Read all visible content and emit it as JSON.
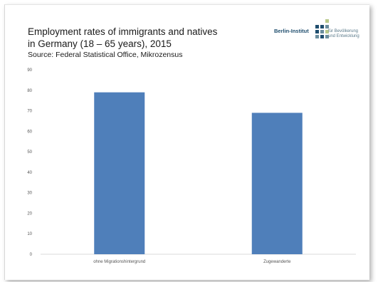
{
  "header": {
    "title_line1": "Employment rates of immigrants and natives",
    "title_line2": "in Germany (18 – 65 years), 2015",
    "source": "Source: Federal Statistical Office, Mikrozensus"
  },
  "logo": {
    "name": "Berlin-Institut",
    "sub_line1": "für Bevölkerung",
    "sub_line2": "und Entwicklung",
    "icon": "square-grid-logo-icon",
    "colors": {
      "dark": "#1f4e6e",
      "mid": "#6b8e9e",
      "light": "#b8c98a"
    }
  },
  "chart_data": {
    "type": "bar",
    "categories": [
      "ohne Migrationshintergrund",
      "Zugewanderte"
    ],
    "values": [
      79,
      69
    ],
    "ylim": [
      0,
      90
    ],
    "yticks": [
      "0",
      "10",
      "20",
      "30",
      "40",
      "50",
      "60",
      "70",
      "80",
      "90"
    ],
    "grid": false,
    "bar_color": "#4f7fba",
    "xlabel": "",
    "ylabel": ""
  }
}
